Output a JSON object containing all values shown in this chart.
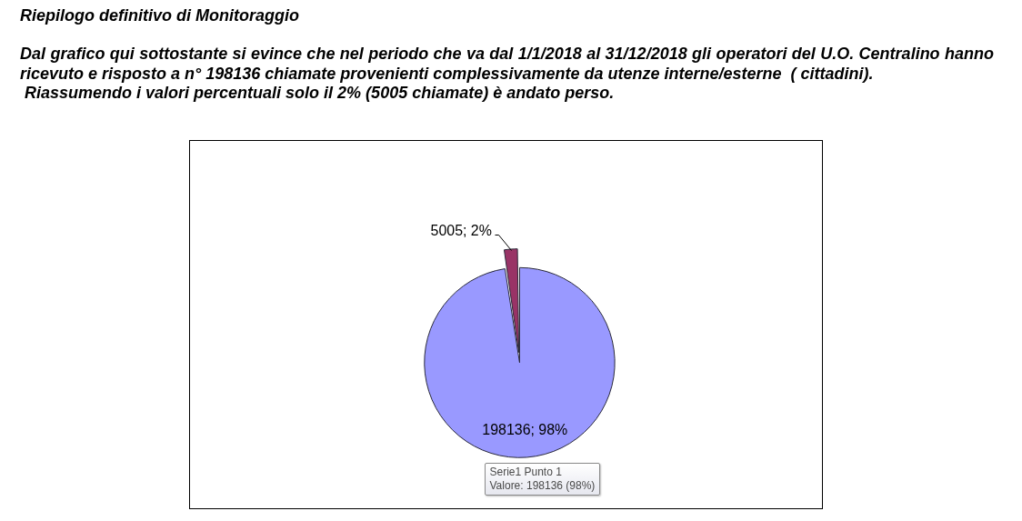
{
  "chart_data": {
    "type": "pie",
    "title": "Riepilogo definitivo di Monitoraggio",
    "subtitle": "Dal grafico qui sottostante si evince che nel periodo che va dal 1/1/2018 al 31/12/2018 gli operatori del U.O. Centralino hanno\nricevuto e risposto a n° 198136 chiamate provenienti complessivamente da utenze interne/esterne  ( cittadini).\n Riassumendo i valori percentuali solo il 2% (5005 chiamate) è andato perso.",
    "categories": [
      null,
      null
    ],
    "values": [
      198136,
      5005
    ],
    "colors": [
      "#9999ff",
      "#993366"
    ],
    "value_labels": [
      "198136; 98%",
      "5005; 2%"
    ],
    "annotations": [
      "Serie1 Punto 1",
      "Valore: 198136 (98%)"
    ]
  }
}
